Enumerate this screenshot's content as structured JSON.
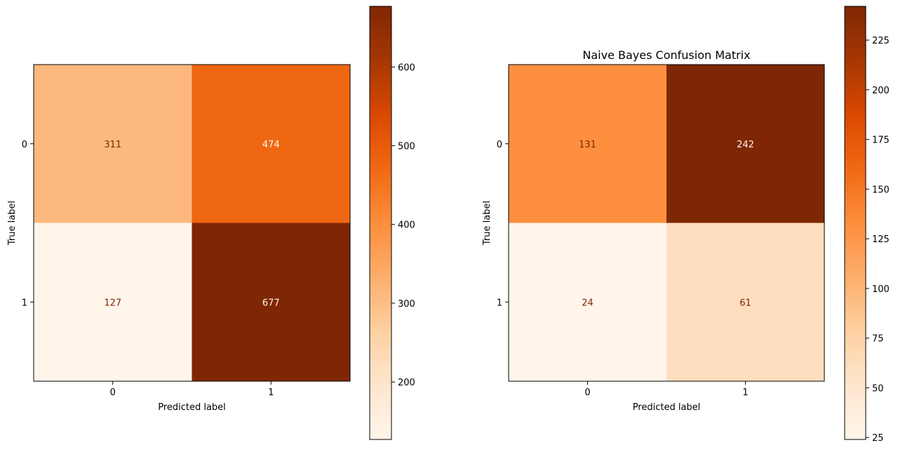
{
  "chart_data": [
    {
      "type": "heatmap",
      "title": "",
      "xlabel": "Predicted label",
      "ylabel": "True label",
      "x_categories": [
        "0",
        "1"
      ],
      "y_categories": [
        "0",
        "1"
      ],
      "values": [
        [
          311,
          474
        ],
        [
          127,
          677
        ]
      ],
      "colormap": "Oranges",
      "colorbar": {
        "range": [
          127,
          677
        ],
        "ticks": [
          200,
          300,
          400,
          500,
          600
        ]
      },
      "grid": false
    },
    {
      "type": "heatmap",
      "title": "Naive Bayes Confusion Matrix",
      "xlabel": "Predicted label",
      "ylabel": "True label",
      "x_categories": [
        "0",
        "1"
      ],
      "y_categories": [
        "0",
        "1"
      ],
      "values": [
        [
          131,
          242
        ],
        [
          24,
          61
        ]
      ],
      "colormap": "Oranges",
      "colorbar": {
        "range": [
          24,
          242
        ],
        "ticks": [
          25,
          50,
          75,
          100,
          125,
          150,
          175,
          200,
          225
        ]
      },
      "grid": false
    }
  ]
}
